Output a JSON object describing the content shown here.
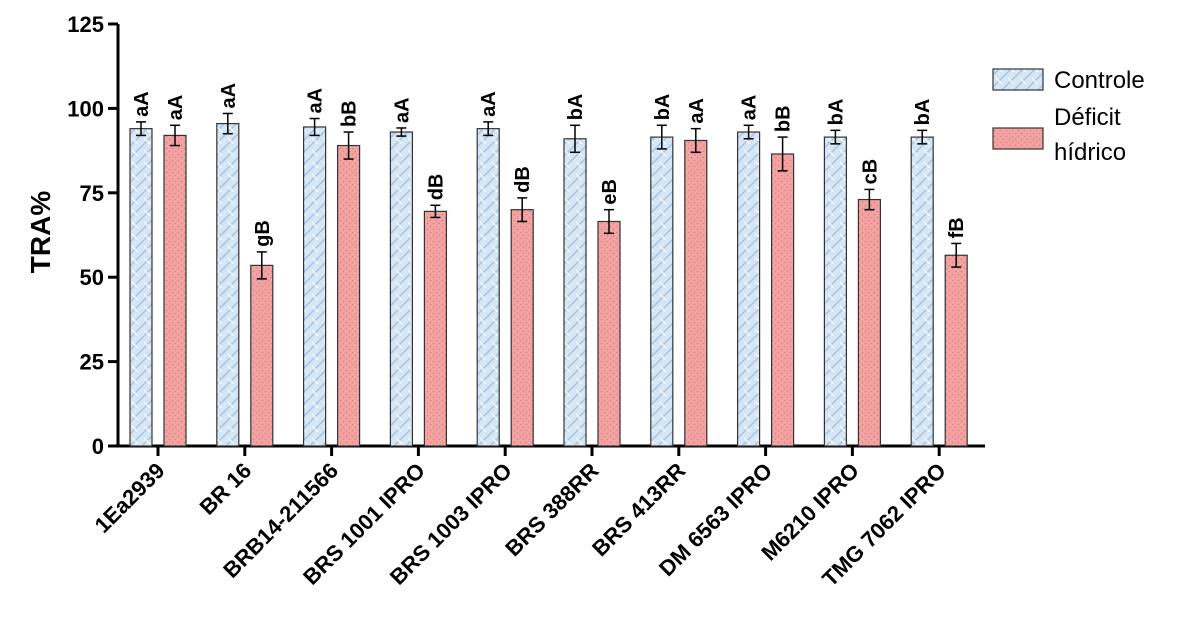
{
  "chart_data": {
    "type": "bar",
    "ylabel": "TRA%",
    "xlabel": "",
    "ylim": [
      0,
      125
    ],
    "yticks": [
      0,
      25,
      50,
      75,
      100,
      125
    ],
    "categories": [
      "1Ea2939",
      "BR 16",
      "BRB14-211566",
      "BRS 1001 IPRO",
      "BRS 1003 IPRO",
      "BRS 388RR",
      "BRS 413RR",
      "DM 6563 IPRO",
      "M6210 IPRO",
      "TMG 7062 IPRO"
    ],
    "series": [
      {
        "name": "Controle",
        "color": "#d6e6f5",
        "pattern": "brick",
        "values": [
          94,
          95.5,
          94.5,
          93,
          94,
          91,
          91.5,
          93,
          91.5,
          91.5
        ],
        "errors": [
          2,
          3,
          2.5,
          1.2,
          2,
          4,
          3.5,
          2,
          2,
          2
        ],
        "labels": [
          "aA",
          "aA",
          "aA",
          "aA",
          "aA",
          "bA",
          "bA",
          "aA",
          "bA",
          "bA"
        ]
      },
      {
        "name": "Déficit\nhídrico",
        "color": "#f4a3a3",
        "pattern": "dots",
        "values": [
          92,
          53.5,
          89,
          69.5,
          70,
          66.5,
          90.5,
          86.5,
          73,
          56.5
        ],
        "errors": [
          3,
          4,
          4,
          1.8,
          3.5,
          3.5,
          3.5,
          5,
          3,
          3.5
        ],
        "labels": [
          "aA",
          "gB",
          "bB",
          "dB",
          "dB",
          "eB",
          "aA",
          "bB",
          "cB",
          "fB"
        ]
      }
    ],
    "legend_position": "right",
    "grid": false
  }
}
